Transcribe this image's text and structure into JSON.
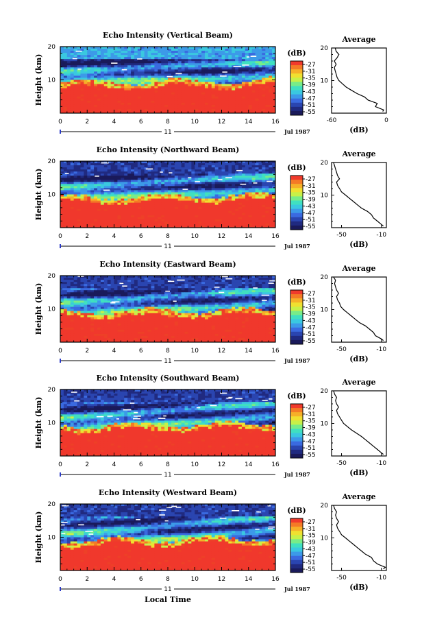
{
  "figure": {
    "xlabel": "Local Time",
    "date_label": "Jul 1987",
    "day_label": "11"
  },
  "colors": {
    "palette": [
      "#1a1a5a",
      "#202a80",
      "#2a45b0",
      "#3a6ae0",
      "#3c9ae8",
      "#3ac8e0",
      "#40e0c0",
      "#78ec88",
      "#c8f048",
      "#f0e030",
      "#f6b028",
      "#f47a26",
      "#ee4028",
      "#f0382c"
    ],
    "cb_colors": [
      "#f03a2c",
      "#f47a26",
      "#f6b028",
      "#f0e030",
      "#c8f048",
      "#78ec88",
      "#40e0c0",
      "#3ac8e0",
      "#3c9ae8",
      "#3a6ae0",
      "#2a45b0",
      "#202a80",
      "#1a1a5a"
    ]
  },
  "colorbar": {
    "unit": "(dB)",
    "ticks": [
      "-27",
      "-31",
      "-35",
      "-39",
      "-43",
      "-47",
      "-51",
      "-55"
    ]
  },
  "chart_data": [
    {
      "type": "heatmap",
      "title": "Echo Intensity (Vertical Beam)",
      "ylabel": "Height (km)",
      "xlim": [
        0,
        16
      ],
      "ylim": [
        0,
        20
      ],
      "x_ticks": [
        "0",
        "2",
        "4",
        "6",
        "8",
        "10",
        "12",
        "14",
        "16"
      ],
      "y_ticks": [
        "10",
        "20"
      ],
      "value_label": "(dB)",
      "inset": {
        "type": "line",
        "title": "Average",
        "xlabel": "(dB)",
        "x_ticks": [
          "-60",
          "0"
        ],
        "y_ticks": [
          "10",
          "20"
        ],
        "xlim": [
          -60,
          0
        ],
        "ylim": [
          0,
          20
        ],
        "profile": [
          [
            -4,
            0.5
          ],
          [
            -3,
            1
          ],
          [
            -12,
            2
          ],
          [
            -10,
            3
          ],
          [
            -20,
            4
          ],
          [
            -24,
            5
          ],
          [
            -32,
            6
          ],
          [
            -38,
            7
          ],
          [
            -44,
            8
          ],
          [
            -48,
            9
          ],
          [
            -52,
            10
          ],
          [
            -54,
            11
          ],
          [
            -55,
            12
          ],
          [
            -56,
            13
          ],
          [
            -57,
            14
          ],
          [
            -55,
            15
          ],
          [
            -57,
            16
          ],
          [
            -54,
            17
          ],
          [
            -52,
            18
          ],
          [
            -55,
            19
          ],
          [
            -56,
            20
          ]
        ]
      }
    },
    {
      "type": "heatmap",
      "title": "Echo Intensity (Northward Beam)",
      "ylabel": "Height (km)",
      "xlim": [
        0,
        16
      ],
      "ylim": [
        0,
        20
      ],
      "x_ticks": [
        "0",
        "2",
        "4",
        "6",
        "8",
        "10",
        "12",
        "14",
        "16"
      ],
      "y_ticks": [
        "10",
        "20"
      ],
      "value_label": "(dB)",
      "inset": {
        "type": "line",
        "title": "Average",
        "xlabel": "(dB)",
        "x_ticks": [
          "-50",
          "-10"
        ],
        "y_ticks": [
          "10",
          "20"
        ],
        "xlim": [
          -60,
          -5
        ],
        "ylim": [
          0,
          20
        ],
        "profile": [
          [
            -8,
            0.5
          ],
          [
            -10,
            1
          ],
          [
            -14,
            2
          ],
          [
            -18,
            3
          ],
          [
            -20,
            4
          ],
          [
            -24,
            5
          ],
          [
            -30,
            6
          ],
          [
            -34,
            7
          ],
          [
            -38,
            8
          ],
          [
            -42,
            9
          ],
          [
            -46,
            10
          ],
          [
            -50,
            11
          ],
          [
            -52,
            12
          ],
          [
            -54,
            13
          ],
          [
            -55,
            14
          ],
          [
            -52,
            15
          ],
          [
            -54,
            16
          ],
          [
            -55,
            17
          ],
          [
            -56,
            18
          ],
          [
            -57,
            19
          ],
          [
            -58,
            20
          ]
        ]
      }
    },
    {
      "type": "heatmap",
      "title": "Echo Intensity (Eastward Beam)",
      "ylabel": "Height (km)",
      "xlim": [
        0,
        16
      ],
      "ylim": [
        0,
        20
      ],
      "x_ticks": [
        "0",
        "2",
        "4",
        "6",
        "8",
        "10",
        "12",
        "14",
        "16"
      ],
      "y_ticks": [
        "10",
        "20"
      ],
      "value_label": "(dB)",
      "inset": {
        "type": "line",
        "title": "Average",
        "xlabel": "(dB)",
        "x_ticks": [
          "-50",
          "-10"
        ],
        "y_ticks": [
          "10",
          "20"
        ],
        "xlim": [
          -60,
          -5
        ],
        "ylim": [
          0,
          20
        ],
        "profile": [
          [
            -8,
            0.5
          ],
          [
            -10,
            1
          ],
          [
            -16,
            2
          ],
          [
            -18,
            3
          ],
          [
            -22,
            4
          ],
          [
            -26,
            5
          ],
          [
            -32,
            6
          ],
          [
            -36,
            7
          ],
          [
            -40,
            8
          ],
          [
            -44,
            9
          ],
          [
            -48,
            10
          ],
          [
            -51,
            11
          ],
          [
            -52,
            12
          ],
          [
            -54,
            13
          ],
          [
            -55,
            14
          ],
          [
            -53,
            15
          ],
          [
            -55,
            16
          ],
          [
            -56,
            17
          ],
          [
            -57,
            18
          ],
          [
            -56,
            19
          ],
          [
            -58,
            20
          ]
        ]
      }
    },
    {
      "type": "heatmap",
      "title": "Echo Intensity (Southward Beam)",
      "ylabel": "Height (km)",
      "xlim": [
        0,
        16
      ],
      "ylim": [
        0,
        20
      ],
      "x_ticks": [
        "0",
        "2",
        "4",
        "6",
        "8",
        "10",
        "12",
        "14",
        "16"
      ],
      "y_ticks": [
        "10",
        "20"
      ],
      "value_label": "(dB)",
      "inset": {
        "type": "line",
        "title": "Average",
        "xlabel": "(dB)",
        "x_ticks": [
          "-50",
          "-10"
        ],
        "y_ticks": [
          "10",
          "20"
        ],
        "xlim": [
          -60,
          -5
        ],
        "ylim": [
          0,
          20
        ],
        "profile": [
          [
            -8,
            0.5
          ],
          [
            -10,
            1
          ],
          [
            -14,
            2
          ],
          [
            -18,
            3
          ],
          [
            -22,
            4
          ],
          [
            -26,
            5
          ],
          [
            -30,
            6
          ],
          [
            -35,
            7
          ],
          [
            -40,
            8
          ],
          [
            -44,
            9
          ],
          [
            -48,
            10
          ],
          [
            -50,
            11
          ],
          [
            -52,
            12
          ],
          [
            -54,
            13
          ],
          [
            -55,
            14
          ],
          [
            -53,
            15
          ],
          [
            -55,
            16
          ],
          [
            -56,
            17
          ],
          [
            -55,
            18
          ],
          [
            -57,
            19
          ],
          [
            -58,
            20
          ]
        ]
      }
    },
    {
      "type": "heatmap",
      "title": "Echo Intensity (Westward Beam)",
      "ylabel": "Height (km)",
      "xlim": [
        0,
        16
      ],
      "ylim": [
        0,
        20
      ],
      "x_ticks": [
        "0",
        "2",
        "4",
        "6",
        "8",
        "10",
        "12",
        "14",
        "16"
      ],
      "y_ticks": [
        "10",
        "20"
      ],
      "value_label": "(dB)",
      "inset": {
        "type": "line",
        "title": "Average",
        "xlabel": "(dB)",
        "x_ticks": [
          "-50",
          "-10"
        ],
        "y_ticks": [
          "10",
          "20"
        ],
        "xlim": [
          -60,
          -5
        ],
        "ylim": [
          0,
          20
        ],
        "profile": [
          [
            -8,
            0.5
          ],
          [
            -6,
            1
          ],
          [
            -14,
            2
          ],
          [
            -18,
            3
          ],
          [
            -20,
            4
          ],
          [
            -26,
            5
          ],
          [
            -30,
            6
          ],
          [
            -34,
            7
          ],
          [
            -38,
            8
          ],
          [
            -42,
            9
          ],
          [
            -46,
            10
          ],
          [
            -50,
            11
          ],
          [
            -52,
            12
          ],
          [
            -54,
            13
          ],
          [
            -55,
            14
          ],
          [
            -53,
            15
          ],
          [
            -55,
            16
          ],
          [
            -56,
            17
          ],
          [
            -55,
            18
          ],
          [
            -57,
            19
          ],
          [
            -58,
            20
          ]
        ]
      }
    }
  ]
}
